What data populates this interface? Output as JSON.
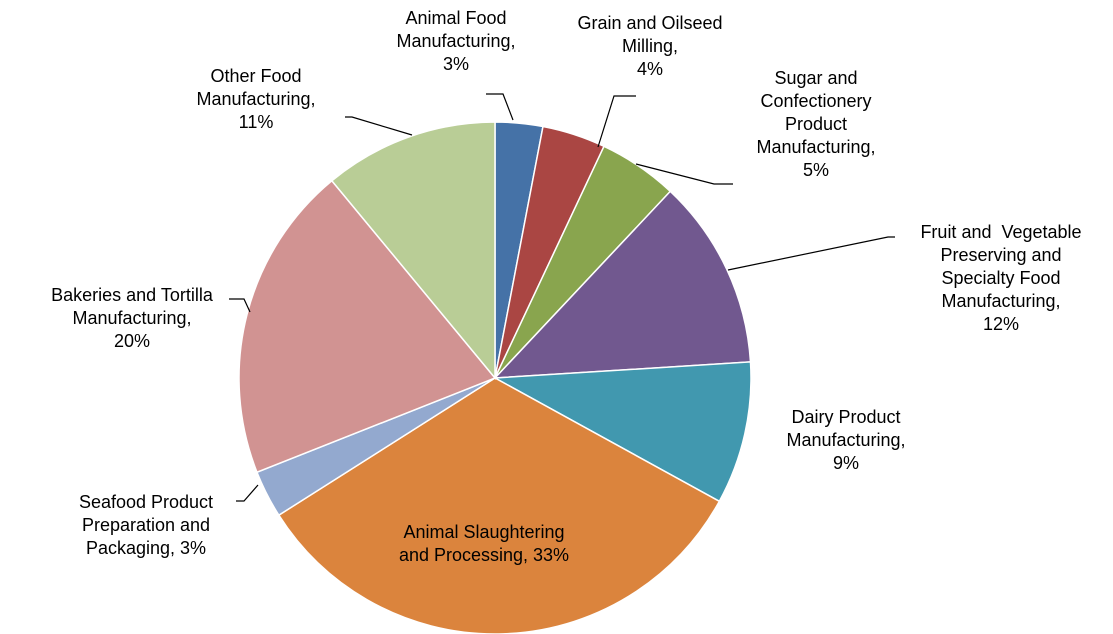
{
  "chart_data": {
    "type": "pie",
    "title": "",
    "start_angle_deg": 0,
    "direction": "clockwise",
    "slices": [
      {
        "label_lines": [
          "Animal Food",
          "Manufacturing,",
          "3%"
        ],
        "value": 3,
        "color": "#4572A7"
      },
      {
        "label_lines": [
          "Grain and Oilseed",
          "Milling,",
          "4%"
        ],
        "value": 4,
        "color": "#AA4643"
      },
      {
        "label_lines": [
          "Sugar and",
          "Confectionery",
          "Product",
          "Manufacturing,",
          "5%"
        ],
        "value": 5,
        "color": "#89A54E"
      },
      {
        "label_lines": [
          "Fruit and  Vegetable",
          "Preserving and",
          "Specialty Food",
          "Manufacturing,",
          "12%"
        ],
        "value": 12,
        "color": "#71588F"
      },
      {
        "label_lines": [
          "Dairy Product",
          "Manufacturing,",
          "9%"
        ],
        "value": 9,
        "color": "#4198AF"
      },
      {
        "label_lines": [
          "Animal Slaughtering",
          "and Processing, 33%"
        ],
        "value": 33,
        "color": "#DB843D"
      },
      {
        "label_lines": [
          "Seafood Product",
          "Preparation and",
          "Packaging, 3%"
        ],
        "value": 3,
        "color": "#93A9CF"
      },
      {
        "label_lines": [
          "Bakeries and Tortilla",
          "Manufacturing,",
          "20%"
        ],
        "value": 20,
        "color": "#D19392"
      },
      {
        "label_lines": [
          "Other Food",
          "Manufacturing,",
          "11%"
        ],
        "value": 11,
        "color": "#B9CD96"
      }
    ]
  }
}
